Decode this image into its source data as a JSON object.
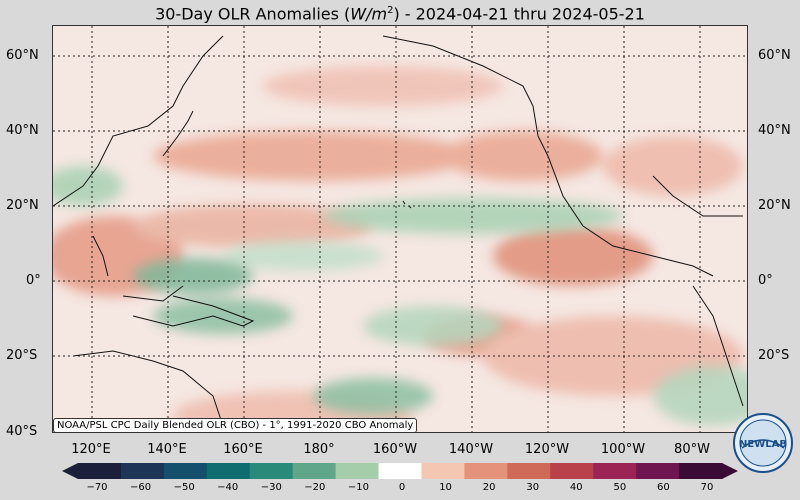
{
  "title": {
    "prefix": "30-Day OLR Anomalies (",
    "unit_base": "W/m",
    "unit_exp": "2",
    "suffix": ") - 2024-04-21 thru 2024-05-21"
  },
  "lat_labels": [
    "60°N",
    "40°N",
    "20°N",
    "0°",
    "20°S",
    "40°S"
  ],
  "lon_labels": [
    "120°E",
    "140°E",
    "160°E",
    "180°",
    "160°W",
    "140°W",
    "120°W",
    "100°W",
    "80°W"
  ],
  "credit": "NOAA/PSL CPC Daily Blended OLR (CBO) - 1°, 1991-2020 CBO Anomaly",
  "colorbar": {
    "ticks": [
      "−70",
      "−60",
      "−50",
      "−40",
      "−30",
      "−20",
      "−10",
      "0",
      "10",
      "20",
      "30",
      "40",
      "50",
      "60",
      "70"
    ],
    "colors": [
      "#1b1f3a",
      "#1d3557",
      "#14506b",
      "#0f6d70",
      "#2a8a7a",
      "#5fa68a",
      "#a6cda9",
      "#ffffff",
      "#f4c7b2",
      "#e4937a",
      "#cf6a58",
      "#b8414a",
      "#9c2454",
      "#6f1550",
      "#3a0c35"
    ]
  },
  "logo": {
    "text": "NEWLAB"
  }
}
